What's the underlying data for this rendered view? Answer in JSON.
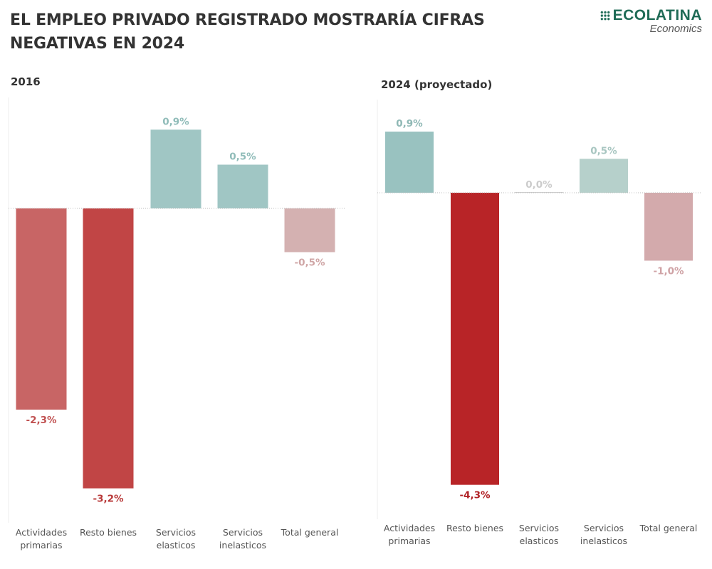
{
  "title": "EL EMPLEO PRIVADO REGISTRADO MOSTRARÍA CIFRAS NEGATIVAS EN 2024",
  "logo": {
    "brand": "ECOLATINA",
    "sub": "Economics"
  },
  "chart_data": [
    {
      "type": "bar",
      "title": "2016",
      "categories": [
        [
          "Actividades",
          "primarias"
        ],
        [
          "Resto bienes"
        ],
        [
          "Servicios",
          "elasticos"
        ],
        [
          "Servicios",
          "inelasticos"
        ],
        [
          "Total general"
        ]
      ],
      "values": [
        -2.3,
        -3.2,
        0.9,
        0.5,
        -0.5
      ],
      "labels": [
        "-2,3%",
        "-3,2%",
        "0,9%",
        "0,5%",
        "-0,5%"
      ],
      "colors": [
        "#c86565",
        "#c14545",
        "#a0c6c4",
        "#a0c6c4",
        "#d4b1b1"
      ],
      "label_colors": [
        "#c05050",
        "#b83838",
        "#90bcb9",
        "#90bcb9",
        "#cfa5a5"
      ]
    },
    {
      "type": "bar",
      "title": "2024 (proyectado)",
      "categories": [
        [
          "Actividades",
          "primarias"
        ],
        [
          "Resto bienes"
        ],
        [
          "Servicios",
          "elasticos"
        ],
        [
          "Servicios",
          "inelasticos"
        ],
        [
          "Total general"
        ]
      ],
      "values": [
        0.9,
        -4.3,
        0.0,
        0.5,
        -1.0
      ],
      "labels": [
        "0,9%",
        "-4,3%",
        "0,0%",
        "0,5%",
        "-1,0%"
      ],
      "colors": [
        "#99c2c0",
        "#b82427",
        "#cccccc",
        "#b6d0cb",
        "#d3aaac"
      ],
      "label_colors": [
        "#8fb8b5",
        "#b02024",
        "#cccccc",
        "#a8c6c1",
        "#cfa2a5"
      ]
    }
  ]
}
